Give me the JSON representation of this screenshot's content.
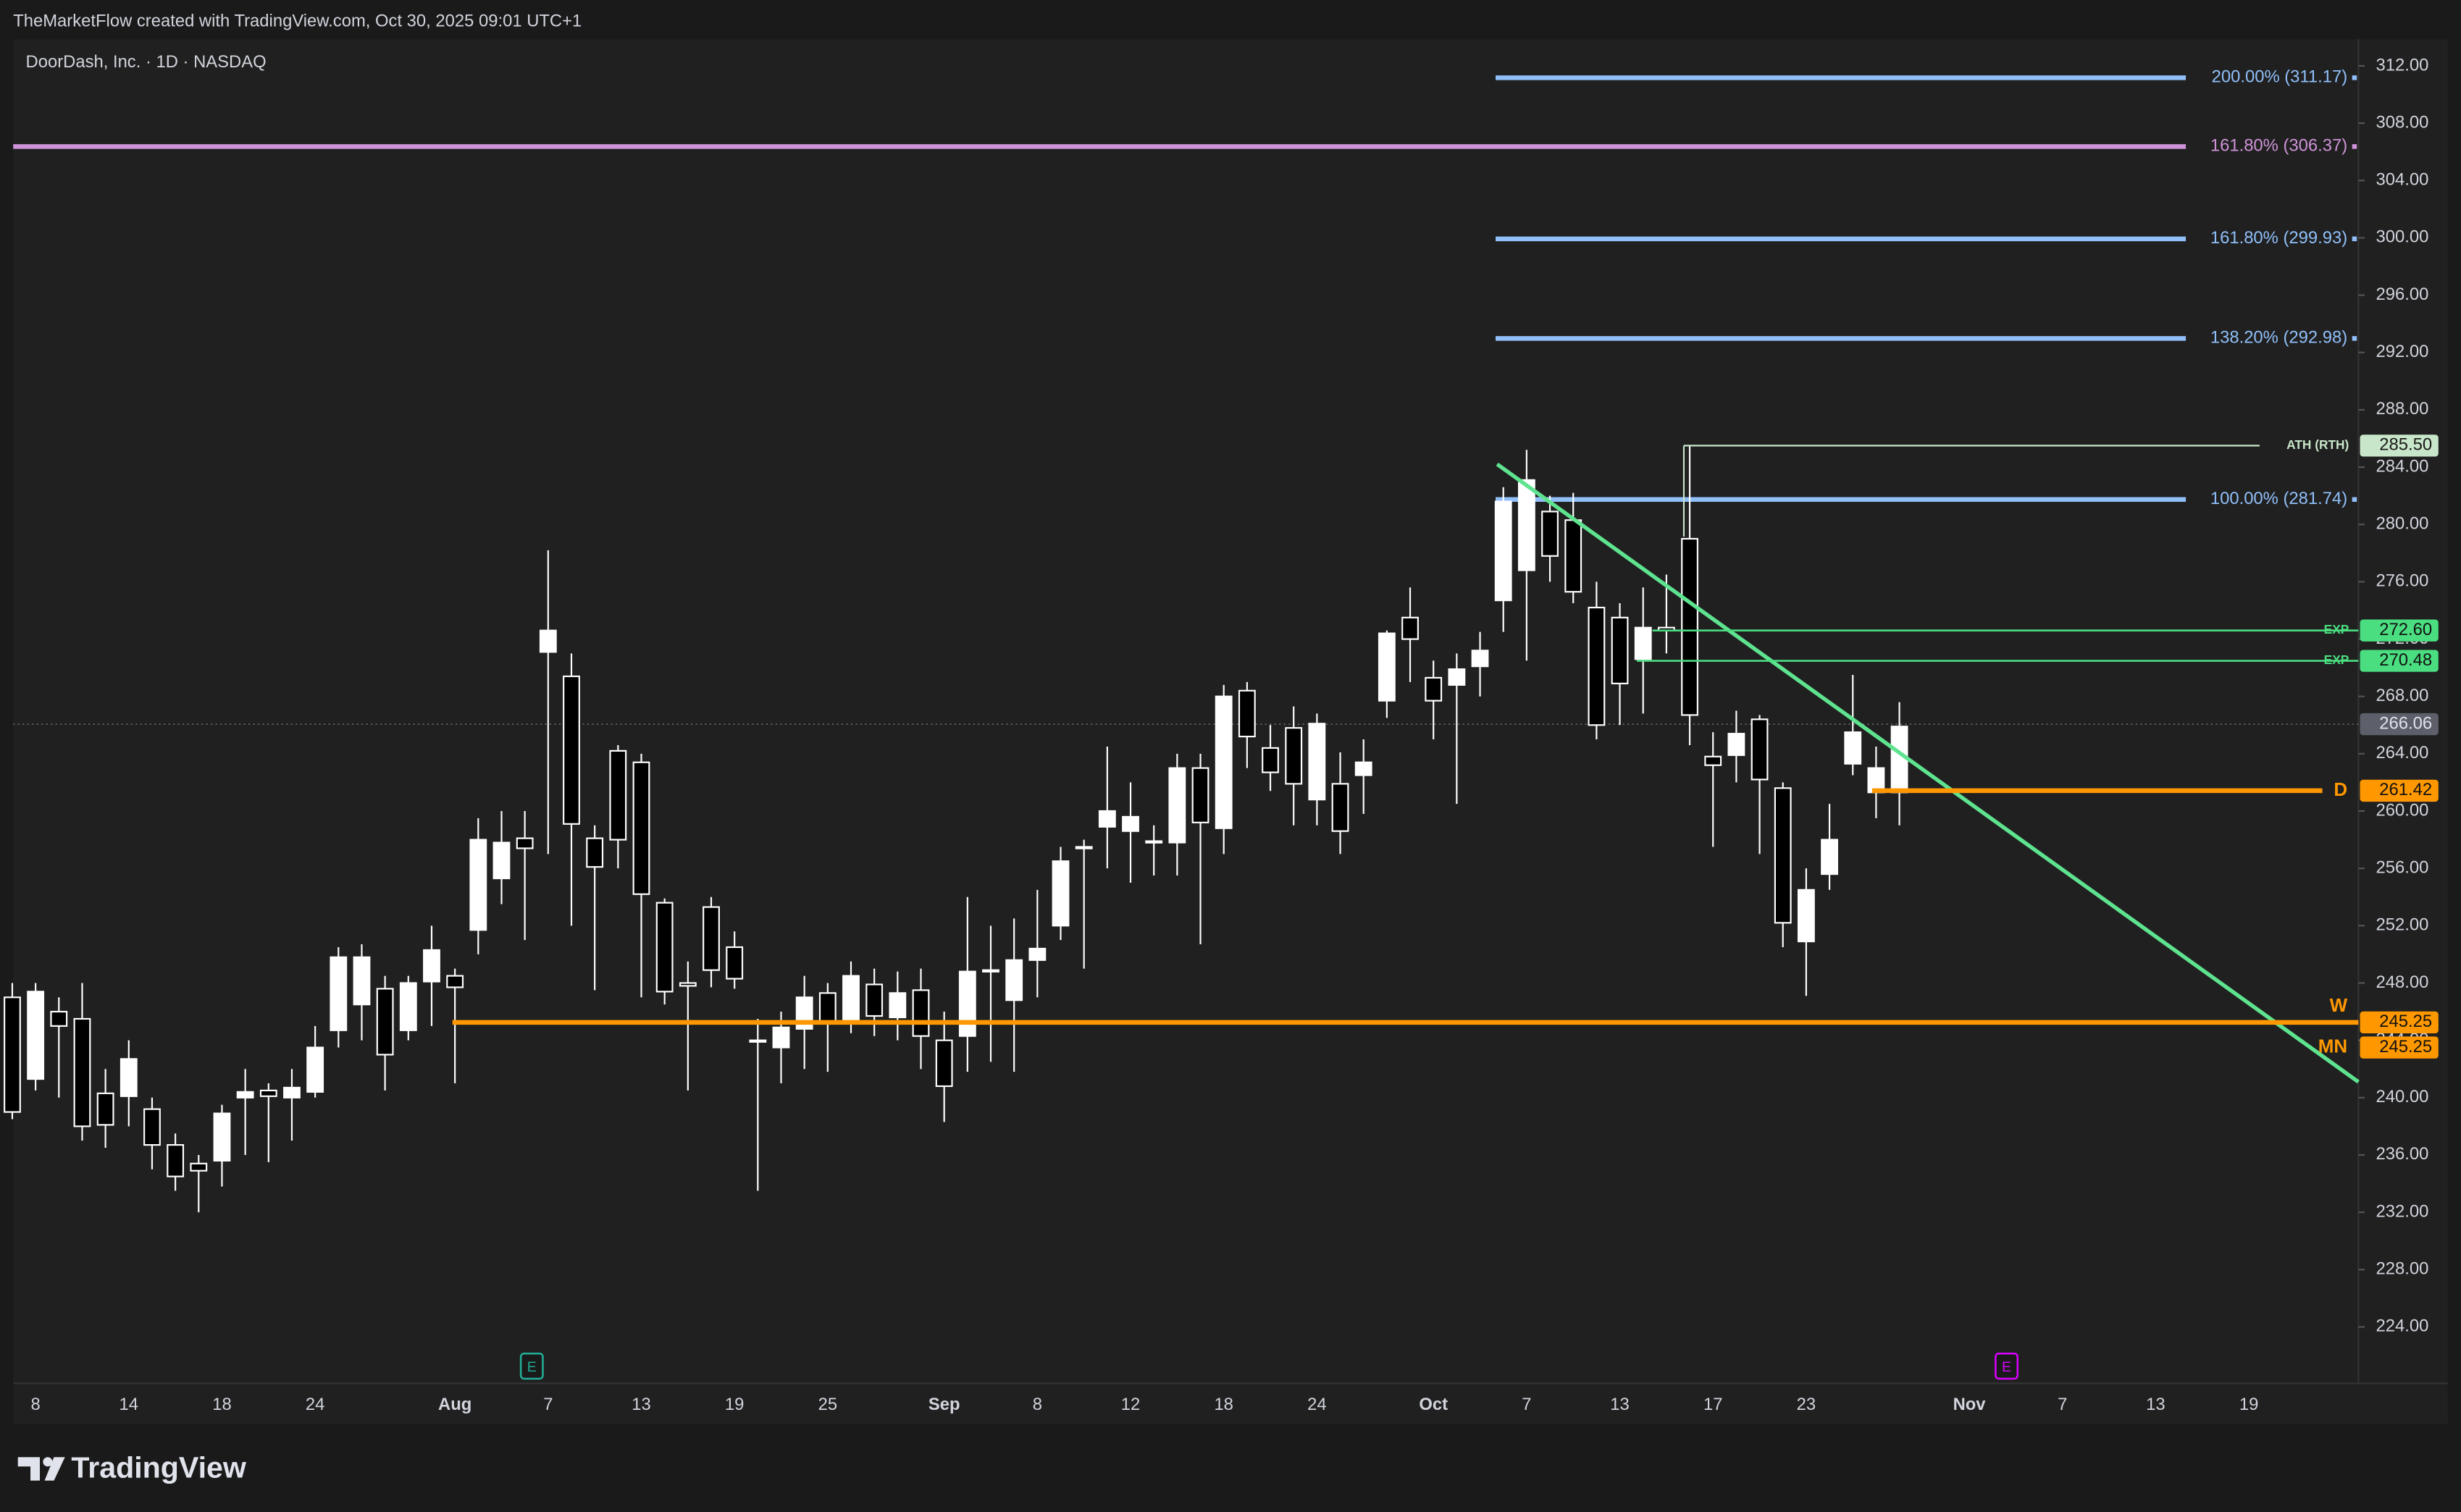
{
  "header": {
    "attribution": "TheMarketFlow created with TradingView.com, Oct 30, 2025 09:01 UTC+1"
  },
  "logo": {
    "text": "TradingView"
  },
  "chart_data": {
    "type": "candlestick",
    "title": "DoorDash, Inc. · 1D · NASDAQ",
    "categories": [
      null,
      "8",
      null,
      null,
      null,
      "14",
      null,
      null,
      null,
      "18",
      null,
      null,
      null,
      "24",
      null,
      null,
      null,
      null,
      null,
      "Aug",
      null,
      null,
      null,
      "7",
      null,
      null,
      null,
      "13",
      null,
      null,
      null,
      "19",
      null,
      null,
      null,
      "25",
      null,
      null,
      null,
      null,
      "Sep",
      null,
      null,
      null,
      "8",
      null,
      null,
      null,
      "12",
      null,
      null,
      null,
      "18",
      null,
      null,
      null,
      "24",
      null,
      null,
      null,
      null,
      "Oct",
      null,
      null,
      null,
      "7",
      null,
      null,
      null,
      "13",
      null,
      null,
      null,
      "17",
      null,
      null,
      null,
      "23",
      null,
      null,
      null,
      null,
      null,
      null,
      "Nov",
      null,
      null,
      null,
      "7",
      null,
      null,
      null,
      "13",
      null,
      null,
      null,
      "19",
      null,
      null,
      null,
      null
    ],
    "open": [
      247,
      241.3,
      246,
      245.5,
      240.3,
      240.1,
      239.2,
      236.7,
      235.4,
      235.6,
      240,
      240.5,
      240,
      240.4,
      244.7,
      246.5,
      247.6,
      244.7,
      248.1,
      248.5,
      251.7,
      255.3,
      258.1,
      271.1,
      269.4,
      258.1,
      264.2,
      263.4,
      253.6,
      248,
      253.3,
      250.5,
      244,
      243.5,
      244.8,
      247.3,
      245.4,
      247.9,
      245.6,
      247.5,
      244,
      244.3,
      248.8,
      246.8,
      249.6,
      252,
      257.4,
      258.9,
      258.6,
      257.9,
      257.8,
      263,
      258.8,
      268.4,
      264.4,
      265.8,
      260.8,
      261.9,
      262.5,
      267.7,
      273.5,
      269.3,
      268.8,
      270.1,
      274.7,
      276.8,
      280.9,
      280.3,
      274.2,
      273.5,
      270.6,
      272.8,
      279,
      263.8,
      263.9,
      266.4,
      261.6,
      250.9,
      255.6,
      263.3,
      261.3,
      261.3,
      null,
      null,
      null,
      null,
      null,
      null,
      null,
      null,
      null,
      null,
      null,
      null,
      null,
      null,
      null,
      null,
      null,
      null,
      null
    ],
    "high": [
      248,
      248,
      247,
      248,
      242,
      244,
      240,
      237.5,
      236,
      239.5,
      242,
      241,
      242,
      245,
      250.5,
      250.7,
      248.5,
      248.5,
      252,
      249,
      259.5,
      260,
      260,
      278.2,
      271,
      259,
      264.6,
      264,
      253.9,
      249.5,
      254,
      251.6,
      245.5,
      246,
      248.5,
      248,
      249.5,
      249,
      248.8,
      249,
      246,
      254,
      252,
      252.5,
      254.5,
      257.5,
      258,
      264.5,
      262,
      259,
      264,
      264,
      268.8,
      269,
      266,
      267.3,
      266.8,
      264.1,
      265,
      272.6,
      275.6,
      270.5,
      271,
      272.5,
      282.6,
      285.2,
      282,
      282.2,
      276,
      274.5,
      275.6,
      276.5,
      285.5,
      265.5,
      267,
      266.7,
      262,
      256,
      260.5,
      269.5,
      264.5,
      267.6,
      null,
      null,
      null,
      null,
      null,
      null,
      null,
      null,
      null,
      null,
      null,
      null,
      null,
      null,
      null,
      null,
      null,
      null,
      null
    ],
    "low": [
      238.5,
      240.5,
      240,
      237,
      236.5,
      238,
      235,
      233.5,
      232,
      233.8,
      236,
      235.5,
      237,
      240,
      243.5,
      244,
      240.5,
      244,
      245,
      241,
      250,
      253.5,
      251,
      257,
      252,
      247.5,
      256,
      247,
      246.5,
      240.5,
      247.7,
      247.6,
      233.5,
      241,
      242,
      241.8,
      244.5,
      244.3,
      244,
      242,
      238.3,
      241.8,
      242.5,
      241.8,
      247,
      251,
      249,
      256,
      255,
      255.5,
      255.5,
      250.7,
      257,
      263,
      261.4,
      259,
      259,
      257,
      259.8,
      266.5,
      269,
      265,
      260.5,
      268,
      272.5,
      270.5,
      276,
      274.5,
      265,
      266,
      266.8,
      271,
      264.6,
      257.5,
      262,
      257,
      250.5,
      247.1,
      254.5,
      262.5,
      259.5,
      259,
      null,
      null,
      null,
      null,
      null,
      null,
      null,
      null,
      null,
      null,
      null,
      null,
      null,
      null,
      null,
      null,
      null,
      null,
      null
    ],
    "close": [
      239,
      247.4,
      245,
      238,
      238.1,
      242.7,
      236.7,
      234.5,
      234.9,
      238.9,
      240.4,
      240.1,
      240.7,
      243.5,
      249.8,
      249.8,
      243,
      248,
      250.3,
      247.7,
      258,
      257.8,
      257.4,
      272.6,
      259.1,
      256.1,
      258,
      254.2,
      247.4,
      247.8,
      248.9,
      248.3,
      243.9,
      244.9,
      247,
      245.2,
      248.5,
      245.7,
      247.3,
      244.3,
      240.8,
      248.8,
      248.9,
      249.6,
      250.4,
      256.5,
      257.5,
      260,
      259.6,
      257.8,
      263,
      259.2,
      268,
      265.2,
      262.7,
      261.9,
      266.1,
      258.6,
      263.4,
      272.4,
      272,
      267.7,
      269.9,
      271.2,
      281.6,
      283.1,
      277.8,
      275.3,
      266,
      268.9,
      272.8,
      272.6,
      266.7,
      263.2,
      265.4,
      262.2,
      252.2,
      254.5,
      258,
      265.5,
      263,
      265.9,
      null,
      null,
      null,
      null,
      null,
      null,
      null,
      null,
      null,
      null,
      null,
      null,
      null,
      null,
      null,
      null,
      null,
      null,
      null
    ],
    "up_color": "#ffffff",
    "down_color": "#000000",
    "border_color": "#ffffff",
    "ylim": [
      220.06,
      313.86
    ],
    "yticks": [
      {
        "value": 224,
        "label": "224.00"
      },
      {
        "value": 228,
        "label": "228.00"
      },
      {
        "value": 232,
        "label": "232.00"
      },
      {
        "value": 236,
        "label": "236.00"
      },
      {
        "value": 240,
        "label": "240.00"
      },
      {
        "value": 244,
        "label": "244.00"
      },
      {
        "value": 248,
        "label": "248.00"
      },
      {
        "value": 252,
        "label": "252.00"
      },
      {
        "value": 256,
        "label": "256.00"
      },
      {
        "value": 260,
        "label": "260.00"
      },
      {
        "value": 264,
        "label": "264.00"
      },
      {
        "value": 268,
        "label": "268.00"
      },
      {
        "value": 272,
        "label": "272.00"
      },
      {
        "value": 276,
        "label": "276.00"
      },
      {
        "value": 280,
        "label": "280.00"
      },
      {
        "value": 284,
        "label": "284.00"
      },
      {
        "value": 288,
        "label": "288.00"
      },
      {
        "value": 292,
        "label": "292.00"
      },
      {
        "value": 296,
        "label": "296.00"
      },
      {
        "value": 300,
        "label": "300.00"
      },
      {
        "value": 304,
        "label": "304.00"
      },
      {
        "value": 308,
        "label": "308.00"
      },
      {
        "value": 312,
        "label": "312.00"
      }
    ],
    "grid": false,
    "fib_levels": [
      {
        "label": "200.00% (311.17)",
        "value": 311.17,
        "color": "#90bff9"
      },
      {
        "label": "161.80% (306.37)",
        "value": 306.37,
        "color": "#ce93d8"
      },
      {
        "label": "161.80% (299.93)",
        "value": 299.93,
        "color": "#90bff9"
      },
      {
        "label": "138.20% (292.98)",
        "value": 292.98,
        "color": "#90bff9"
      },
      {
        "label": "100.00% (281.74)",
        "value": 281.74,
        "color": "#90bff9"
      }
    ],
    "tags": [
      {
        "name": "ATH (RTH)",
        "value": 285.5,
        "label": "285.50",
        "color": "#c8e6c9"
      },
      {
        "name": "EXP",
        "value": 272.6,
        "label": "272.60",
        "color": "#4ade80"
      },
      {
        "name": "EXP",
        "value": 270.48,
        "label": "270.48",
        "color": "#4ade80"
      },
      {
        "name": "D",
        "value": 261.42,
        "label": "261.42",
        "color": "#ff9800"
      },
      {
        "name": "W",
        "value": 245.25,
        "label": "245.25",
        "color": "#ff9800"
      },
      {
        "name": "MN",
        "value": 245.25,
        "label": "245.25",
        "color": "#ff9800"
      }
    ],
    "last_price": {
      "value": 266.06,
      "label": "266.06",
      "color": "#5d606b"
    },
    "trendline": {
      "color": "#5ee38f",
      "values": [
        284.2,
        241.1
      ]
    },
    "events": [
      {
        "label": "E",
        "color": "#22ab94"
      },
      {
        "label": "E",
        "color": "#d500f9"
      }
    ]
  }
}
